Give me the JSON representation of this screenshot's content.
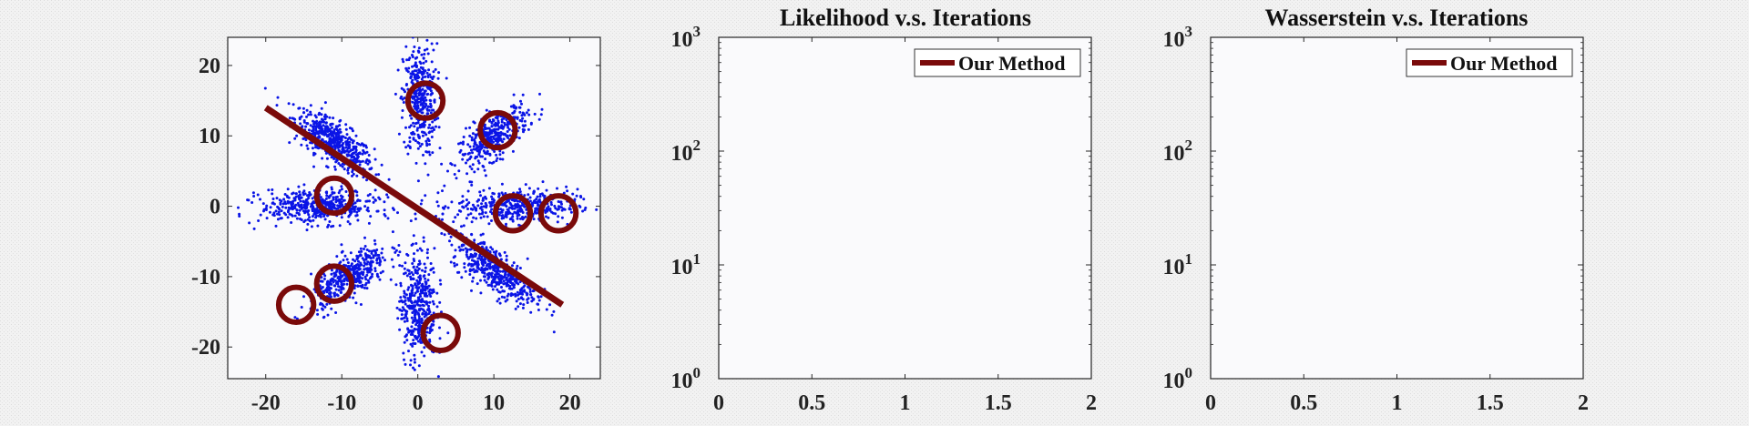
{
  "chart_data": [
    {
      "type": "scatter",
      "title": "",
      "xlabel": "",
      "ylabel": "",
      "xlim": [
        -25,
        24
      ],
      "ylim": [
        -24.5,
        24
      ],
      "xticks": [
        "-20",
        "-10",
        "0",
        "10",
        "20"
      ],
      "yticks": [
        "20",
        "10",
        "0",
        "-10",
        "-20"
      ],
      "xtick_values": [
        -20,
        -10,
        0,
        10,
        20
      ],
      "ytick_values": [
        20,
        10,
        0,
        -10,
        -20
      ],
      "grid": false,
      "colors": {
        "points": "#0a14e6",
        "overlay": "#7a0a0a",
        "background": "#fafafc"
      },
      "sample_clusters": [
        {
          "cx": -11,
          "cy": 9,
          "sx": 2.6,
          "sy": 2.3,
          "rho": -0.75,
          "n": 520
        },
        {
          "cx": 0.3,
          "cy": 15,
          "sx": 1.1,
          "sy": 4.0,
          "rho": 0.0,
          "n": 380
        },
        {
          "cx": 10,
          "cy": 10,
          "sx": 2.3,
          "sy": 2.2,
          "rho": 0.7,
          "n": 380
        },
        {
          "cx": 13,
          "cy": 0,
          "sx": 4.0,
          "sy": 1.2,
          "rho": 0.0,
          "n": 420
        },
        {
          "cx": 10,
          "cy": -9,
          "sx": 2.8,
          "sy": 2.5,
          "rho": -0.75,
          "n": 460
        },
        {
          "cx": 0,
          "cy": -14,
          "sx": 1.2,
          "sy": 4.0,
          "rho": 0.0,
          "n": 420
        },
        {
          "cx": -9,
          "cy": -10,
          "sx": 2.5,
          "sy": 2.2,
          "rho": 0.7,
          "n": 430
        },
        {
          "cx": -13,
          "cy": 0,
          "sx": 3.8,
          "sy": 1.2,
          "rho": 0.0,
          "n": 480
        }
      ],
      "overlay_line": {
        "x": [
          -20,
          19
        ],
        "y": [
          14,
          -14
        ]
      },
      "circle_centers": [
        {
          "x": 1,
          "y": 15
        },
        {
          "x": 10.5,
          "y": 10.8
        },
        {
          "x": -11,
          "y": 1.5
        },
        {
          "x": 12.5,
          "y": -1
        },
        {
          "x": 18.5,
          "y": -1
        },
        {
          "x": -11,
          "y": -11
        },
        {
          "x": -16,
          "y": -14
        },
        {
          "x": 3,
          "y": -18
        }
      ],
      "circle_radius": 2.3
    },
    {
      "type": "line",
      "title": "Likelihood v.s. Iterations",
      "xlabel": "",
      "ylabel": "",
      "xlim": [
        0,
        2
      ],
      "ylim": [
        1,
        1000
      ],
      "yscale": "log",
      "xticks": [
        "0",
        "0.5",
        "1",
        "1.5",
        "2"
      ],
      "xtick_values": [
        0,
        0.5,
        1,
        1.5,
        2
      ],
      "yticks": [
        {
          "base": "10",
          "exp": "3"
        },
        {
          "base": "10",
          "exp": "2"
        },
        {
          "base": "10",
          "exp": "1"
        },
        {
          "base": "10",
          "exp": "0"
        }
      ],
      "ytick_values": [
        1000,
        100,
        10,
        1
      ],
      "grid": false,
      "legend": {
        "placement": "top-right",
        "entries": [
          "Our Method"
        ]
      },
      "series": [
        {
          "name": "Our Method",
          "values": [],
          "color": "#7a0a0a"
        }
      ]
    },
    {
      "type": "line",
      "title": "Wasserstein v.s. Iterations",
      "xlabel": "",
      "ylabel": "",
      "xlim": [
        0,
        2
      ],
      "ylim": [
        1,
        1000
      ],
      "yscale": "log",
      "xticks": [
        "0",
        "0.5",
        "1",
        "1.5",
        "2"
      ],
      "xtick_values": [
        0,
        0.5,
        1,
        1.5,
        2
      ],
      "yticks": [
        {
          "base": "10",
          "exp": "3"
        },
        {
          "base": "10",
          "exp": "2"
        },
        {
          "base": "10",
          "exp": "1"
        },
        {
          "base": "10",
          "exp": "0"
        }
      ],
      "ytick_values": [
        1000,
        100,
        10,
        1
      ],
      "grid": false,
      "legend": {
        "placement": "top-right",
        "entries": [
          "Our Method"
        ]
      },
      "series": [
        {
          "name": "Our Method",
          "values": [],
          "color": "#7a0a0a"
        }
      ]
    }
  ]
}
